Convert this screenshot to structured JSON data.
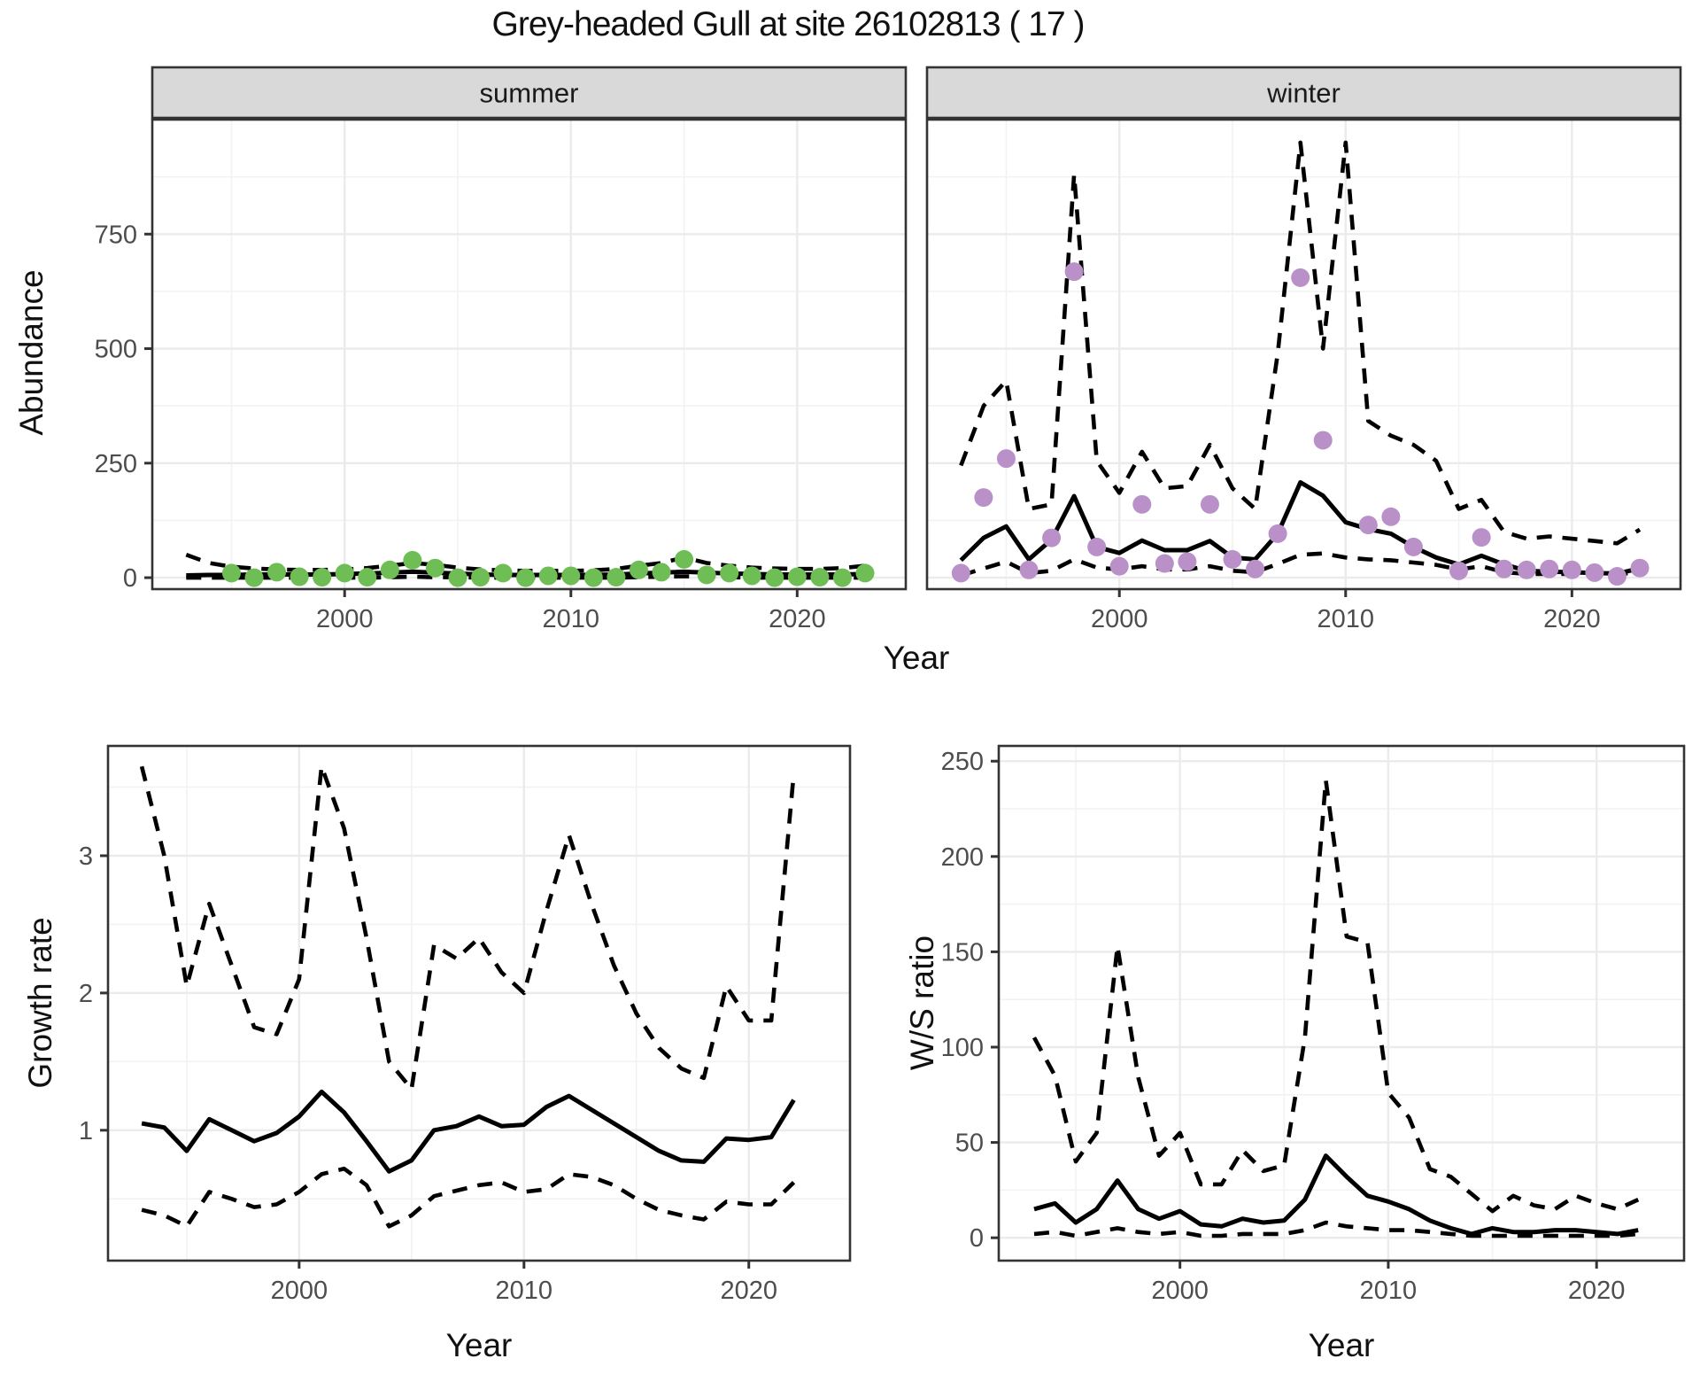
{
  "title": "Grey-headed Gull at site 26102813 ( 17 )",
  "labels": {
    "abundance": "Abundance",
    "year": "Year",
    "growth": "Growth rate",
    "ws_ratio": "W/S ratio"
  },
  "colors": {
    "summer_point": "#6EBE55",
    "winter_point": "#BA90C9",
    "fit_line": "#000000",
    "ci_line": "#000000",
    "grid_major": "#EBEBEB",
    "grid_minor": "#F2F2F2",
    "panel_border": "#333333",
    "strip_fill": "#D9D9D9",
    "tick_label": "#4D4D4D",
    "strip_text": "#1A1A1A"
  },
  "chart_data": [
    {
      "id": "abundance-summer",
      "type": "line+scatter",
      "facet_label": "summer",
      "ylabel": "Abundance",
      "xlabel": "Year",
      "x_domain": [
        1991.5,
        2024.8
      ],
      "y_domain": [
        -25,
        1000
      ],
      "x_ticks": [
        2000,
        2010,
        2020
      ],
      "x_minor": [
        1995,
        2005,
        2015
      ],
      "y_ticks": [
        0,
        250,
        500,
        750
      ],
      "y_minor": [
        125,
        375,
        625,
        875
      ],
      "show_y_labels": true,
      "point_color_key": "summer_point",
      "points": [
        [
          1995,
          10
        ],
        [
          1996,
          0
        ],
        [
          1997,
          12
        ],
        [
          1998,
          2
        ],
        [
          1999,
          1
        ],
        [
          2000,
          10
        ],
        [
          2001,
          1
        ],
        [
          2002,
          17
        ],
        [
          2003,
          38
        ],
        [
          2004,
          21
        ],
        [
          2005,
          0
        ],
        [
          2006,
          1
        ],
        [
          2007,
          10
        ],
        [
          2008,
          0
        ],
        [
          2009,
          4
        ],
        [
          2010,
          4
        ],
        [
          2011,
          0
        ],
        [
          2012,
          1
        ],
        [
          2013,
          17
        ],
        [
          2014,
          12
        ],
        [
          2015,
          40
        ],
        [
          2016,
          6
        ],
        [
          2017,
          10
        ],
        [
          2018,
          4
        ],
        [
          2019,
          0
        ],
        [
          2020,
          2
        ],
        [
          2021,
          1
        ],
        [
          2022,
          0
        ],
        [
          2023,
          10
        ]
      ],
      "fit": {
        "start": 1993,
        "values": [
          5,
          6,
          6,
          7,
          7,
          7,
          7,
          8,
          9,
          11,
          13,
          11,
          9,
          7,
          6,
          6,
          6,
          6,
          6,
          7,
          9,
          11,
          13,
          11,
          9,
          8,
          7,
          7,
          7,
          7,
          8
        ]
      },
      "upper": {
        "start": 1993,
        "values": [
          50,
          32,
          24,
          20,
          18,
          17,
          17,
          18,
          21,
          26,
          32,
          28,
          22,
          18,
          16,
          15,
          15,
          15,
          16,
          19,
          26,
          32,
          44,
          32,
          26,
          22,
          20,
          19,
          19,
          21,
          26
        ]
      },
      "lower": {
        "start": 1993,
        "values": [
          0,
          0,
          0,
          0,
          0,
          0,
          0,
          0,
          0,
          1,
          2,
          1,
          1,
          0,
          0,
          0,
          0,
          0,
          0,
          0,
          1,
          2,
          3,
          2,
          1,
          0,
          0,
          0,
          0,
          0,
          0
        ]
      }
    },
    {
      "id": "abundance-winter",
      "type": "line+scatter",
      "facet_label": "winter",
      "ylabel": "Abundance",
      "xlabel": "Year",
      "x_domain": [
        1991.5,
        2024.8
      ],
      "y_domain": [
        -25,
        1000
      ],
      "x_ticks": [
        2000,
        2010,
        2020
      ],
      "x_minor": [
        1995,
        2005,
        2015
      ],
      "y_ticks": [
        0,
        250,
        500,
        750
      ],
      "y_minor": [
        125,
        375,
        625,
        875
      ],
      "show_y_labels": false,
      "point_color_key": "winter_point",
      "points": [
        [
          1993,
          10
        ],
        [
          1994,
          175
        ],
        [
          1995,
          260
        ],
        [
          1996,
          17
        ],
        [
          1997,
          87
        ],
        [
          1998,
          668
        ],
        [
          1999,
          67
        ],
        [
          2000,
          25
        ],
        [
          2001,
          160
        ],
        [
          2002,
          31
        ],
        [
          2003,
          35
        ],
        [
          2004,
          160
        ],
        [
          2005,
          40
        ],
        [
          2006,
          19
        ],
        [
          2007,
          96
        ],
        [
          2008,
          655
        ],
        [
          2009,
          300
        ],
        [
          2011,
          115
        ],
        [
          2012,
          133
        ],
        [
          2013,
          67
        ],
        [
          2015,
          15
        ],
        [
          2016,
          88
        ],
        [
          2017,
          19
        ],
        [
          2018,
          17
        ],
        [
          2019,
          19
        ],
        [
          2020,
          17
        ],
        [
          2021,
          11
        ],
        [
          2022,
          3
        ],
        [
          2023,
          21
        ]
      ],
      "fit": {
        "start": 1993,
        "values": [
          38,
          87,
          112,
          40,
          83,
          178,
          67,
          54,
          81,
          60,
          60,
          80,
          44,
          40,
          96,
          208,
          179,
          121,
          106,
          96,
          67,
          44,
          29,
          48,
          29,
          15,
          13,
          12,
          10,
          9,
          20
        ]
      },
      "upper": {
        "start": 1993,
        "values": [
          245,
          375,
          430,
          150,
          160,
          880,
          255,
          185,
          275,
          195,
          200,
          290,
          195,
          150,
          490,
          950,
          500,
          950,
          342,
          310,
          290,
          255,
          150,
          170,
          100,
          85,
          90,
          85,
          80,
          75,
          105
        ]
      },
      "lower": {
        "start": 1993,
        "values": [
          5,
          20,
          35,
          10,
          15,
          40,
          22,
          18,
          25,
          18,
          18,
          25,
          15,
          12,
          30,
          50,
          53,
          44,
          40,
          38,
          33,
          28,
          18,
          25,
          12,
          8,
          8,
          8,
          7,
          5,
          15
        ]
      }
    },
    {
      "id": "growth-rate",
      "type": "line",
      "facet_label": null,
      "ylabel": "Growth rate",
      "xlabel": "Year",
      "x_domain": [
        1991.5,
        2024.5
      ],
      "y_domain": [
        0.05,
        3.8
      ],
      "x_ticks": [
        2000,
        2010,
        2020
      ],
      "x_minor": [
        1995,
        2005,
        2015
      ],
      "y_ticks": [
        1,
        2,
        3
      ],
      "y_minor": [
        0.5,
        1.5,
        2.5,
        3.5
      ],
      "show_y_labels": true,
      "points": [],
      "fit": {
        "start": 1993,
        "values": [
          1.05,
          1.02,
          0.85,
          1.08,
          1.0,
          0.92,
          0.98,
          1.1,
          1.28,
          1.13,
          0.92,
          0.7,
          0.78,
          1.0,
          1.03,
          1.1,
          1.03,
          1.04,
          1.17,
          1.25,
          1.15,
          1.05,
          0.95,
          0.85,
          0.78,
          0.77,
          0.94,
          0.93,
          0.95,
          1.22
        ]
      },
      "upper": {
        "start": 1993,
        "values": [
          3.65,
          3.0,
          2.05,
          2.65,
          2.2,
          1.75,
          1.7,
          2.1,
          3.65,
          3.2,
          2.4,
          1.5,
          1.3,
          2.35,
          2.25,
          2.4,
          2.15,
          2.0,
          2.6,
          3.15,
          2.65,
          2.2,
          1.85,
          1.6,
          1.45,
          1.38,
          2.05,
          1.8,
          1.8,
          3.6
        ]
      },
      "lower": {
        "start": 1993,
        "values": [
          0.42,
          0.38,
          0.3,
          0.55,
          0.5,
          0.44,
          0.46,
          0.55,
          0.68,
          0.72,
          0.6,
          0.3,
          0.38,
          0.52,
          0.56,
          0.6,
          0.62,
          0.55,
          0.57,
          0.68,
          0.66,
          0.6,
          0.5,
          0.42,
          0.38,
          0.35,
          0.48,
          0.46,
          0.46,
          0.62
        ]
      }
    },
    {
      "id": "ws-ratio",
      "type": "line",
      "facet_label": null,
      "ylabel": "W/S ratio",
      "xlabel": "Year",
      "x_domain": [
        1991.3,
        2024.2
      ],
      "y_domain": [
        -12,
        258
      ],
      "x_ticks": [
        2000,
        2010,
        2020
      ],
      "x_minor": [
        1995,
        2005,
        2015
      ],
      "y_ticks": [
        0,
        50,
        100,
        150,
        200,
        250
      ],
      "y_minor": [
        25,
        75,
        125,
        175,
        225
      ],
      "show_y_labels": true,
      "points": [],
      "fit": {
        "start": 1993,
        "values": [
          15,
          18,
          8,
          15,
          30,
          15,
          10,
          14,
          7,
          6,
          10,
          8,
          9,
          20,
          43,
          32,
          22,
          19,
          15,
          9,
          5,
          2,
          5,
          3,
          3,
          4,
          4,
          3,
          2,
          4
        ]
      },
      "upper": {
        "start": 1993,
        "values": [
          105,
          85,
          40,
          55,
          153,
          84,
          43,
          55,
          28,
          28,
          46,
          35,
          38,
          105,
          240,
          158,
          155,
          76,
          63,
          36,
          32,
          23,
          14,
          22,
          17,
          15,
          22,
          18,
          15,
          20
        ]
      },
      "lower": {
        "start": 1993,
        "values": [
          2,
          3,
          1,
          3,
          5,
          3,
          2,
          3,
          1,
          1,
          2,
          2,
          2,
          4,
          8,
          6,
          5,
          4,
          4,
          3,
          2,
          1,
          1,
          1,
          1,
          1,
          1,
          1,
          1,
          2
        ]
      }
    }
  ]
}
